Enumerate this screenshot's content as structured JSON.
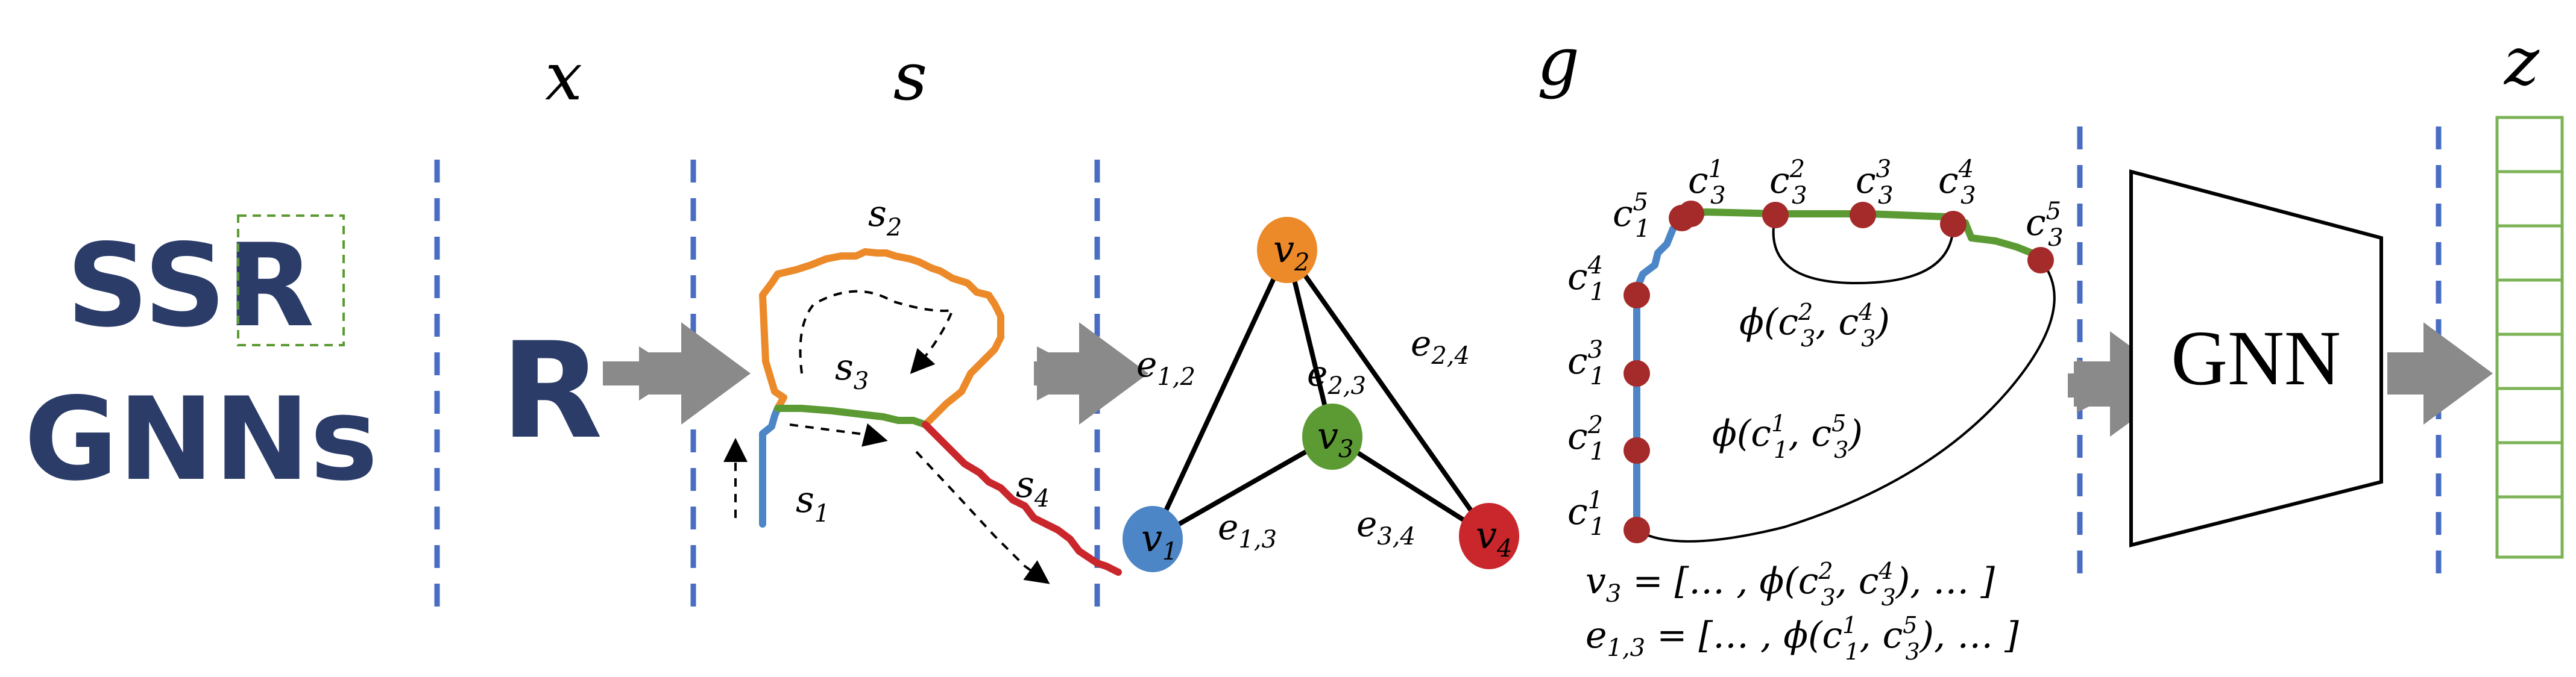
{
  "colors": {
    "navy": "#2b3c69",
    "divider": "#4a6dc4",
    "arrow": "#8a8a8a",
    "blue": "#4d86c6",
    "orange": "#ec8a2a",
    "green": "#5c9b34",
    "red": "#c9272b",
    "node_dark_red": "#a52a2a",
    "z_green": "#7cb356"
  },
  "title": {
    "line1_prefix": "SS",
    "line1_boxed": "R",
    "line2": "GNNs"
  },
  "stages": {
    "x": "x",
    "s": "s",
    "g": "g",
    "z": "z"
  },
  "input_glyph": "R",
  "strokes": {
    "s1": {
      "base": "s",
      "sub": "1"
    },
    "s2": {
      "base": "s",
      "sub": "2"
    },
    "s3": {
      "base": "s",
      "sub": "3"
    },
    "s4": {
      "base": "s",
      "sub": "4"
    }
  },
  "graph": {
    "nodes": {
      "v1": {
        "base": "v",
        "sub": "1",
        "color": "#4d86c6"
      },
      "v2": {
        "base": "v",
        "sub": "2",
        "color": "#ec8a2a"
      },
      "v3": {
        "base": "v",
        "sub": "3",
        "color": "#5c9b34"
      },
      "v4": {
        "base": "v",
        "sub": "4",
        "color": "#c9272b"
      }
    },
    "edges": {
      "e12": {
        "base": "e",
        "sub": "1,2"
      },
      "e23": {
        "base": "e",
        "sub": "2,3"
      },
      "e24": {
        "base": "e",
        "sub": "2,4"
      },
      "e13": {
        "base": "e",
        "sub": "1,3"
      },
      "e34": {
        "base": "e",
        "sub": "3,4"
      }
    }
  },
  "control_points": {
    "c15": {
      "base": "c",
      "sub": "1",
      "sup": "5"
    },
    "c14": {
      "base": "c",
      "sub": "1",
      "sup": "4"
    },
    "c13": {
      "base": "c",
      "sub": "1",
      "sup": "3"
    },
    "c12": {
      "base": "c",
      "sub": "1",
      "sup": "2"
    },
    "c11": {
      "base": "c",
      "sub": "1",
      "sup": "1"
    },
    "c31": {
      "base": "c",
      "sub": "3",
      "sup": "1"
    },
    "c32": {
      "base": "c",
      "sub": "3",
      "sup": "2"
    },
    "c33": {
      "base": "c",
      "sub": "3",
      "sup": "3"
    },
    "c34": {
      "base": "c",
      "sub": "3",
      "sup": "4"
    },
    "c35": {
      "base": "c",
      "sub": "3",
      "sup": "5"
    }
  },
  "phi_labels": {
    "phi1": {
      "phi": "ϕ",
      "open": "(",
      "a": "c",
      "a_sub": "3",
      "a_sup": "2",
      "sep": ", ",
      "b": "c",
      "b_sub": "3",
      "b_sup": "4",
      "close": ")"
    },
    "phi2": {
      "phi": "ϕ",
      "open": "(",
      "a": "c",
      "a_sub": "1",
      "a_sup": "1",
      "sep": ", ",
      "b": "c",
      "b_sub": "3",
      "b_sup": "5",
      "close": ")"
    }
  },
  "features": {
    "v3": {
      "base": "v",
      "sub": "3",
      "eq": " = [… , ",
      "phi": "ϕ",
      "open": "(",
      "a": "c",
      "a_sub": "3",
      "a_sup": "2",
      "sep": ", ",
      "b": "c",
      "b_sub": "3",
      "b_sup": "4",
      "close": "), … ]"
    },
    "e13": {
      "base": "e",
      "sub": "1,3",
      "eq": " = [… , ",
      "phi": "ϕ",
      "open": "(",
      "a": "c",
      "a_sub": "1",
      "a_sup": "1",
      "sep": ", ",
      "b": "c",
      "b_sub": "3",
      "b_sup": "5",
      "close": "), … ]"
    }
  },
  "gnn_label": "GNN"
}
